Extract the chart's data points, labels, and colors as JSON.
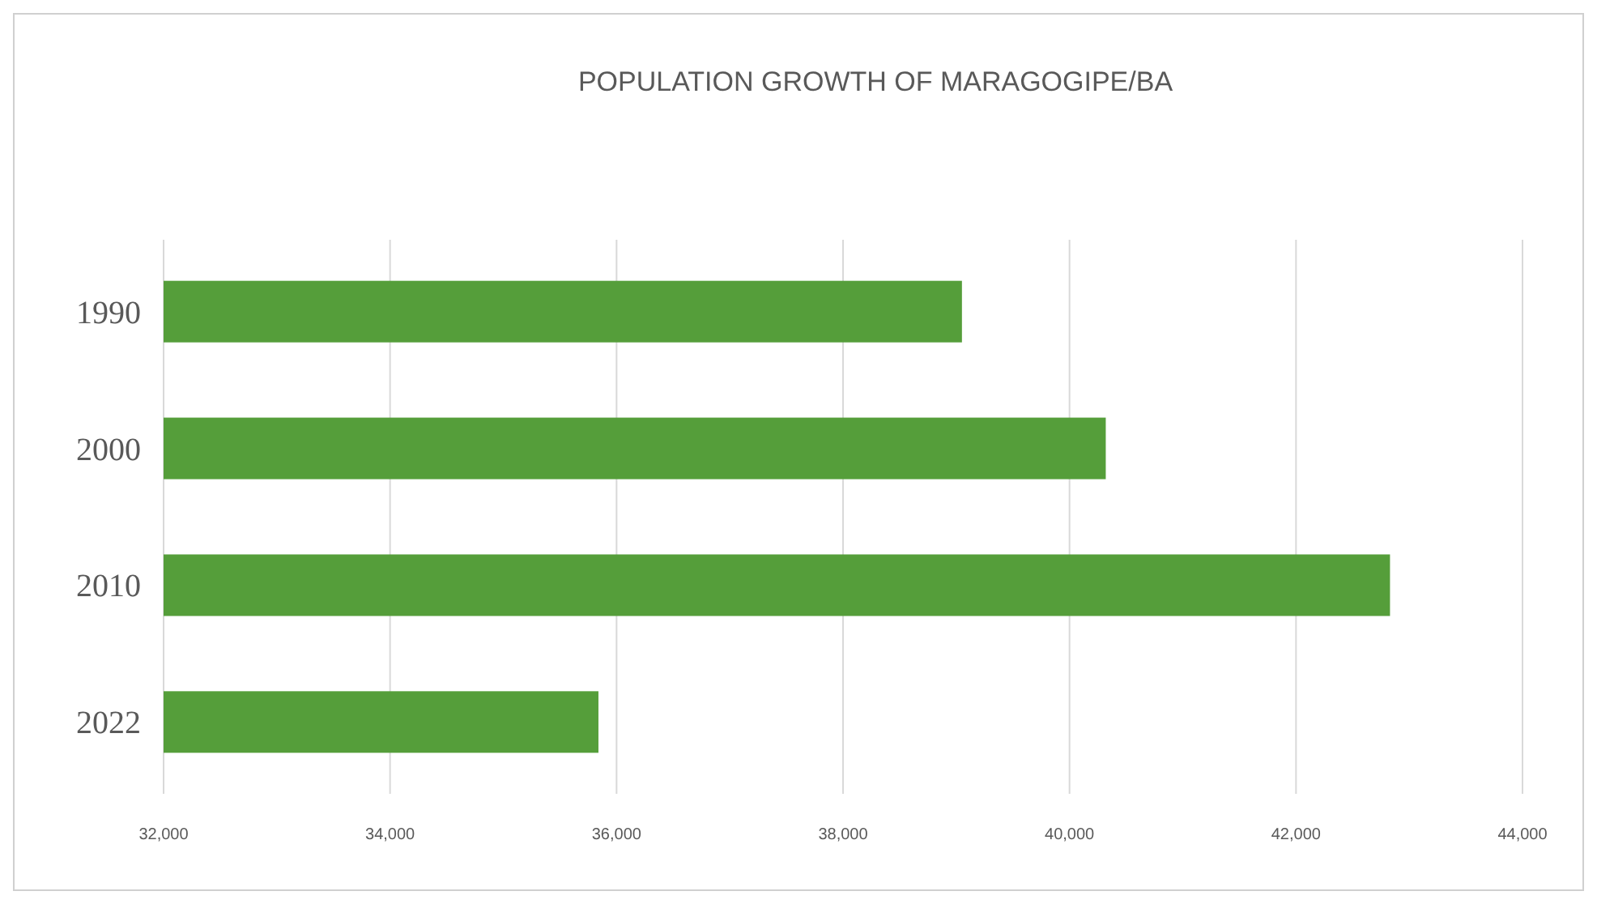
{
  "chart_data": {
    "type": "bar",
    "orientation": "horizontal",
    "title": "POPULATION GROWTH OF MARAGOGIPE/BA",
    "categories": [
      "1990",
      "2000",
      "2010",
      "2022"
    ],
    "values": [
      39050,
      40320,
      42830,
      35840
    ],
    "color": "#559e3a",
    "xlim": [
      32000,
      44000
    ],
    "xticks": [
      {
        "value": 32000,
        "label": "32,000"
      },
      {
        "value": 34000,
        "label": "34,000"
      },
      {
        "value": 36000,
        "label": "36,000"
      },
      {
        "value": 38000,
        "label": "38,000"
      },
      {
        "value": 40000,
        "label": "40,000"
      },
      {
        "value": 42000,
        "label": "42,000"
      },
      {
        "value": 44000,
        "label": "44,000"
      }
    ],
    "grid": "x"
  }
}
